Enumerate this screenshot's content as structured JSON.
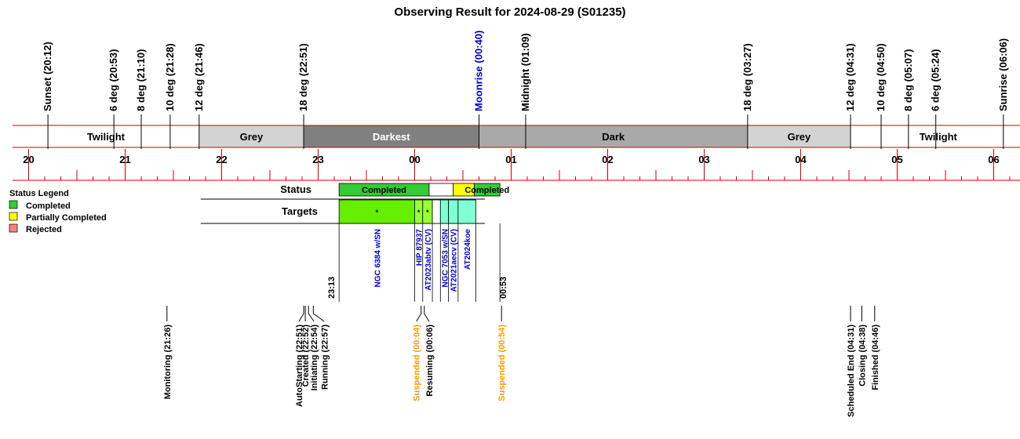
{
  "title": "Observing Result for 2024-08-29 (S01235)",
  "chart_data": {
    "type": "timeline",
    "time_axis": {
      "start": "19:50",
      "end": "06:20",
      "major_tick_labels": [
        "20",
        "21",
        "22",
        "23",
        "00",
        "01",
        "02",
        "03",
        "04",
        "05",
        "06"
      ]
    },
    "sky_events": [
      {
        "label": "Sunset (20:12)",
        "time": "20:12",
        "color": "#000000"
      },
      {
        "label": "6 deg (20:53)",
        "time": "20:53",
        "color": "#000000"
      },
      {
        "label": "8 deg (21:10)",
        "time": "21:10",
        "color": "#000000"
      },
      {
        "label": "10 deg (21:28)",
        "time": "21:28",
        "color": "#000000"
      },
      {
        "label": "12 deg (21:46)",
        "time": "21:46",
        "color": "#000000"
      },
      {
        "label": "18 deg (22:51)",
        "time": "22:51",
        "color": "#000000"
      },
      {
        "label": "Moonrise (00:40)",
        "time": "00:40",
        "color": "#0000cc"
      },
      {
        "label": "Midnight (01:09)",
        "time": "01:09",
        "color": "#000000"
      },
      {
        "label": "18 deg (03:27)",
        "time": "03:27",
        "color": "#000000"
      },
      {
        "label": "12 deg (04:31)",
        "time": "04:31",
        "color": "#000000"
      },
      {
        "label": "10 deg (04:50)",
        "time": "04:50",
        "color": "#000000"
      },
      {
        "label": "8 deg (05:07)",
        "time": "05:07",
        "color": "#000000"
      },
      {
        "label": "6 deg (05:24)",
        "time": "05:24",
        "color": "#000000"
      },
      {
        "label": "Sunrise (06:06)",
        "time": "06:06",
        "color": "#000000"
      }
    ],
    "sky_bands": [
      {
        "label": "Twilight",
        "start": "19:50",
        "end": "21:46",
        "fill": "#ffffff",
        "text_color": "#000000"
      },
      {
        "label": "Grey",
        "start": "21:46",
        "end": "22:51",
        "fill": "#d3d3d3",
        "text_color": "#000000"
      },
      {
        "label": "Darkest",
        "start": "22:51",
        "end": "00:40",
        "fill": "#808080",
        "text_color": "#ffffff"
      },
      {
        "label": "Dark",
        "start": "00:40",
        "end": "03:27",
        "fill": "#a9a9a9",
        "text_color": "#000000"
      },
      {
        "label": "Grey",
        "start": "03:27",
        "end": "04:31",
        "fill": "#d3d3d3",
        "text_color": "#000000"
      },
      {
        "label": "Twilight",
        "start": "04:31",
        "end": "06:20",
        "fill": "#ffffff",
        "text_color": "#000000"
      }
    ],
    "status_row_label": "Status",
    "targets_row_label": "Targets",
    "status_segments": [
      {
        "label": "Completed",
        "start": "23:13",
        "end": "00:09",
        "fill": "#33cc33"
      },
      {
        "label": "",
        "start": "00:09",
        "end": "00:24",
        "fill": "#ffffff"
      },
      {
        "label": "",
        "start": "00:24",
        "end": "00:37",
        "fill": "#ffff00"
      },
      {
        "label": "Completed",
        "start": "00:37",
        "end": "00:53",
        "fill": "#33cc33"
      }
    ],
    "target_segments": [
      {
        "name": "NGC 6384 w/SN",
        "start": "23:13",
        "end": "00:00",
        "fill": "#66ee00",
        "marker": "*"
      },
      {
        "name": "HIP 87937",
        "start": "00:00",
        "end": "00:05",
        "fill": "#99ff33",
        "marker": "*"
      },
      {
        "name": "AT2023abtv (CV)",
        "start": "00:05",
        "end": "00:11",
        "fill": "#99ff33",
        "marker": "*"
      },
      {
        "name": "",
        "start": "00:11",
        "end": "00:16",
        "fill": "#ffffff",
        "marker": ""
      },
      {
        "name": "NGC 7053 w/SN",
        "start": "00:16",
        "end": "00:21",
        "fill": "#7fffd4",
        "marker": ""
      },
      {
        "name": "AT2021aecv (CV)",
        "start": "00:21",
        "end": "00:27",
        "fill": "#7fffd4",
        "marker": ""
      },
      {
        "name": "AT2024koe",
        "start": "00:27",
        "end": "00:38",
        "fill": "#7fffd4",
        "marker": ""
      }
    ],
    "target_time_labels": [
      {
        "label": "23:13",
        "time": "23:13"
      },
      {
        "label": "00:53",
        "time": "00:53"
      }
    ],
    "legend": {
      "title": "Status Legend",
      "position": "left",
      "items": [
        {
          "label": "Completed",
          "color": "#33cc33"
        },
        {
          "label": "Partially Completed",
          "color": "#ffff00"
        },
        {
          "label": "Rejected",
          "color": "#ff7f7f"
        }
      ]
    },
    "operation_events": [
      {
        "label": "Monitoring (21:26)",
        "time": "21:26",
        "color": "#000000"
      },
      {
        "label": "AutoStarting (22:51)",
        "time": "22:51",
        "color": "#000000"
      },
      {
        "label": "Created (22:52)",
        "time": "22:52",
        "color": "#000000"
      },
      {
        "label": "Initiating (22:54)",
        "time": "22:54",
        "color": "#000000"
      },
      {
        "label": "Running (22:57)",
        "time": "22:57",
        "color": "#000000"
      },
      {
        "label": "Suspended (00:04)",
        "time": "00:04",
        "color": "#ff9900"
      },
      {
        "label": "Resuming (00:06)",
        "time": "00:06",
        "color": "#000000"
      },
      {
        "label": "Suspended (00:54)",
        "time": "00:54",
        "color": "#ff9900"
      },
      {
        "label": "Scheduled End (04:31)",
        "time": "04:31",
        "color": "#000000"
      },
      {
        "label": "Closing (04:38)",
        "time": "04:38",
        "color": "#000000"
      },
      {
        "label": "Finished (04:46)",
        "time": "04:46",
        "color": "#000000"
      }
    ],
    "colors": {
      "axis_line": "#cc0000",
      "target_name": "#0000cc"
    }
  }
}
